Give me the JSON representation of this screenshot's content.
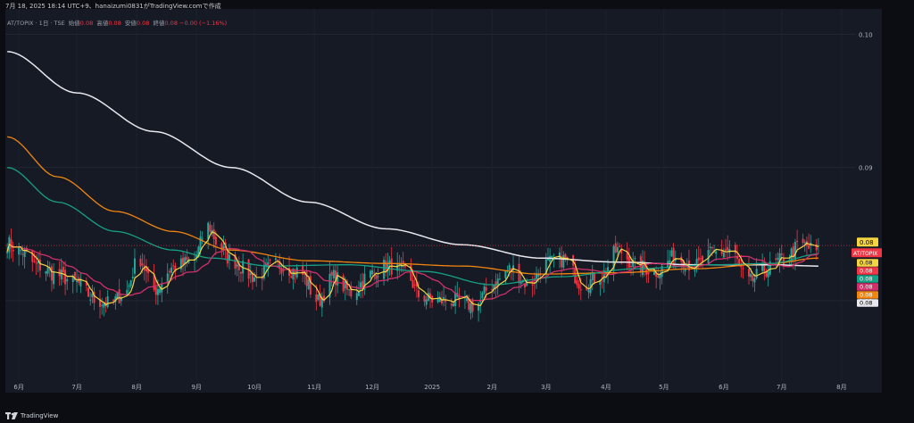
{
  "header": {
    "capture_line": "7月 18, 2025 18:14 UTC+9、hanaizumi0831がTradingView.comで作成"
  },
  "legend": {
    "symbol": "AT/TOPIX · 1日 · TSE",
    "open_label": "始値",
    "open_value": "0.08",
    "high_label": "高値",
    "high_value": "0.08",
    "low_label": "安値",
    "low_value": "0.08",
    "close_label": "終値",
    "close_value": "0.08",
    "change": "−0.00 (−1.16%)"
  },
  "footer": {
    "brand": "TradingView"
  },
  "colors": {
    "background": "#161a25",
    "up": "#26a69a",
    "down": "#f23645",
    "ma_fast": "#f5d442",
    "ma_mid": "#d1306a",
    "ma_teal": "#16a085",
    "ma_orange": "#f0850f",
    "ma_long": "#e8e8ee"
  },
  "chart_data": {
    "type": "candlestick",
    "y_axis": {
      "ticks": [
        "0.10",
        "0.09",
        "0.08"
      ],
      "tick_values": [
        0.1,
        0.09,
        0.08
      ],
      "ylim": [
        0.0731,
        0.1019
      ]
    },
    "x_axis": {
      "ticks": [
        "6月",
        "7月",
        "8月",
        "9月",
        "10月",
        "11月",
        "12月",
        "2025",
        "2月",
        "3月",
        "4月",
        "5月",
        "6月",
        "7月",
        "8月"
      ],
      "tick_days": [
        0,
        30,
        61,
        92,
        122,
        153,
        183,
        214,
        245,
        273,
        304,
        334,
        365,
        395,
        426
      ],
      "xlim": [
        -7,
        433
      ]
    },
    "last_price_tag": "0.08",
    "symbol_tag": "AT/TOPIX",
    "ma_tags": [
      {
        "value": "0.08",
        "color": "#f5d442"
      },
      {
        "value": "0.08",
        "color": "#f23645"
      },
      {
        "value": "0.08",
        "color": "#16a085"
      },
      {
        "value": "0.08",
        "color": "#d1306a"
      },
      {
        "value": "0.08",
        "color": "#f0850f"
      },
      {
        "value": "0.08",
        "color": "#e8e8ee"
      }
    ],
    "close_anchors": [
      [
        -6,
        0.0843
      ],
      [
        0,
        0.0838
      ],
      [
        10,
        0.0826
      ],
      [
        20,
        0.0819
      ],
      [
        30,
        0.0813
      ],
      [
        40,
        0.08
      ],
      [
        47,
        0.0798
      ],
      [
        55,
        0.0806
      ],
      [
        62,
        0.0832
      ],
      [
        70,
        0.0808
      ],
      [
        80,
        0.0825
      ],
      [
        90,
        0.083
      ],
      [
        98,
        0.0856
      ],
      [
        104,
        0.084
      ],
      [
        110,
        0.083
      ],
      [
        122,
        0.0818
      ],
      [
        133,
        0.0827
      ],
      [
        145,
        0.0822
      ],
      [
        155,
        0.08
      ],
      [
        163,
        0.0818
      ],
      [
        172,
        0.0806
      ],
      [
        182,
        0.082
      ],
      [
        190,
        0.0826
      ],
      [
        200,
        0.0822
      ],
      [
        208,
        0.0803
      ],
      [
        216,
        0.08
      ],
      [
        226,
        0.08
      ],
      [
        236,
        0.0796
      ],
      [
        245,
        0.0812
      ],
      [
        255,
        0.0824
      ],
      [
        264,
        0.0812
      ],
      [
        273,
        0.0828
      ],
      [
        282,
        0.0831
      ],
      [
        292,
        0.0812
      ],
      [
        302,
        0.082
      ],
      [
        310,
        0.0838
      ],
      [
        320,
        0.0826
      ],
      [
        330,
        0.0822
      ],
      [
        340,
        0.0833
      ],
      [
        350,
        0.0826
      ],
      [
        360,
        0.0836
      ],
      [
        368,
        0.0838
      ],
      [
        378,
        0.0814
      ],
      [
        386,
        0.0823
      ],
      [
        396,
        0.0831
      ],
      [
        405,
        0.0842
      ],
      [
        414,
        0.0837
      ]
    ],
    "ma_long_anchors": [
      [
        -6,
        0.0987
      ],
      [
        30,
        0.0956
      ],
      [
        70,
        0.0927
      ],
      [
        110,
        0.09
      ],
      [
        150,
        0.0874
      ],
      [
        190,
        0.0854
      ],
      [
        230,
        0.0842
      ],
      [
        270,
        0.0832
      ],
      [
        310,
        0.0829
      ],
      [
        350,
        0.0827
      ],
      [
        390,
        0.0827
      ],
      [
        414,
        0.0826
      ]
    ],
    "ma_orange_anchors": [
      [
        -6,
        0.0923
      ],
      [
        20,
        0.0893
      ],
      [
        50,
        0.0867
      ],
      [
        80,
        0.0852
      ],
      [
        110,
        0.0838
      ],
      [
        150,
        0.083
      ],
      [
        190,
        0.0828
      ],
      [
        230,
        0.0826
      ],
      [
        270,
        0.082
      ],
      [
        310,
        0.0821
      ],
      [
        350,
        0.0824
      ],
      [
        390,
        0.0828
      ],
      [
        414,
        0.0832
      ]
    ],
    "ma_teal_anchors": [
      [
        -6,
        0.09
      ],
      [
        20,
        0.0874
      ],
      [
        50,
        0.0852
      ],
      [
        80,
        0.0838
      ],
      [
        100,
        0.0832
      ],
      [
        130,
        0.0826
      ],
      [
        170,
        0.0827
      ],
      [
        210,
        0.0822
      ],
      [
        245,
        0.0812
      ],
      [
        280,
        0.0818
      ],
      [
        320,
        0.0824
      ],
      [
        360,
        0.0827
      ],
      [
        390,
        0.0828
      ],
      [
        414,
        0.0835
      ]
    ]
  }
}
